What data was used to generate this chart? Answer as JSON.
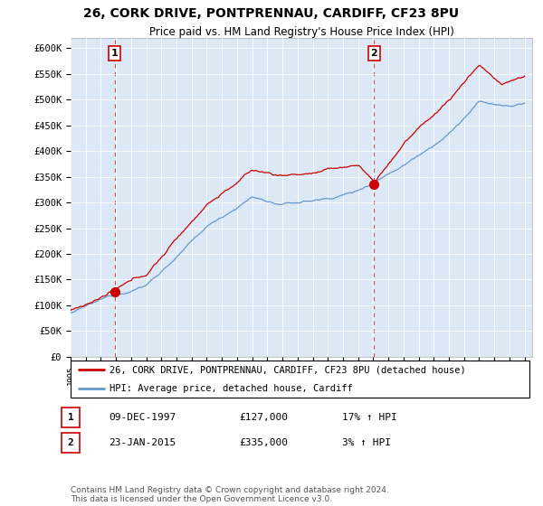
{
  "title": "26, CORK DRIVE, PONTPRENNAU, CARDIFF, CF23 8PU",
  "subtitle": "Price paid vs. HM Land Registry's House Price Index (HPI)",
  "ylabel_ticks": [
    "£0",
    "£50K",
    "£100K",
    "£150K",
    "£200K",
    "£250K",
    "£300K",
    "£350K",
    "£400K",
    "£450K",
    "£500K",
    "£550K",
    "£600K"
  ],
  "ytick_values": [
    0,
    50000,
    100000,
    150000,
    200000,
    250000,
    300000,
    350000,
    400000,
    450000,
    500000,
    550000,
    600000
  ],
  "ylim": [
    0,
    620000
  ],
  "x_start_year": 1995,
  "x_end_year": 2025,
  "marker1": {
    "year": 1997.92,
    "value": 127000,
    "label": "1",
    "date": "09-DEC-1997",
    "price": "£127,000",
    "hpi": "17% ↑ HPI"
  },
  "marker2": {
    "year": 2015.06,
    "value": 335000,
    "label": "2",
    "date": "23-JAN-2015",
    "price": "£335,000",
    "hpi": "3% ↑ HPI"
  },
  "legend_line1": "26, CORK DRIVE, PONTPRENNAU, CARDIFF, CF23 8PU (detached house)",
  "legend_line2": "HPI: Average price, detached house, Cardiff",
  "line_color_red": "#cc0000",
  "line_color_blue": "#6699cc",
  "dashed_line_color": "#cc0000",
  "plot_bg_color": "#dce8f5",
  "footnote": "Contains HM Land Registry data © Crown copyright and database right 2024.\nThis data is licensed under the Open Government Licence v3.0.",
  "background_color": "#ffffff",
  "grid_color": "#ffffff"
}
